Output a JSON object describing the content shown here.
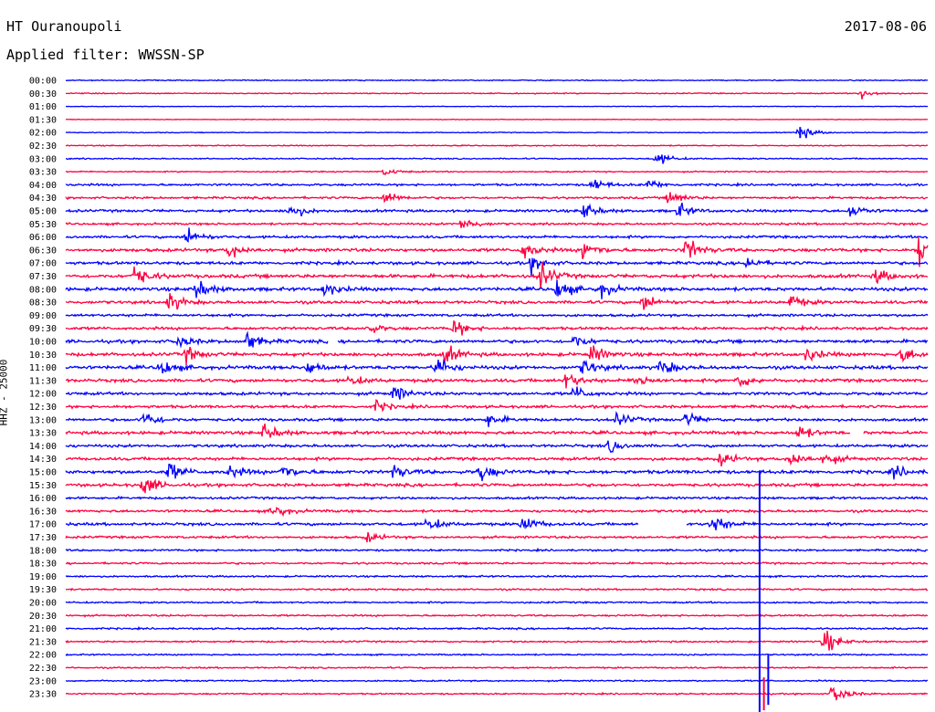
{
  "header": {
    "station": "HT Ouranoupoli",
    "date": "2017-08-06",
    "filter": "Applied filter: WWSSN-SP"
  },
  "chart_data": {
    "type": "line",
    "ylabel": "HHZ - 25000",
    "colors": [
      "#0000ff",
      "#ff0040"
    ],
    "rows": [
      "00:00",
      "00:30",
      "01:00",
      "01:30",
      "02:00",
      "02:30",
      "03:00",
      "03:30",
      "04:00",
      "04:30",
      "05:00",
      "05:30",
      "06:00",
      "06:30",
      "07:00",
      "07:30",
      "08:00",
      "08:30",
      "09:00",
      "09:30",
      "10:00",
      "10:30",
      "11:00",
      "11:30",
      "12:00",
      "12:30",
      "13:00",
      "13:30",
      "14:00",
      "14:30",
      "15:00",
      "15:30",
      "16:00",
      "16:30",
      "17:00",
      "17:30",
      "18:00",
      "18:30",
      "19:00",
      "19:30",
      "20:00",
      "20:30",
      "21:00",
      "21:30",
      "22:00",
      "22:30",
      "23:00",
      "23:30"
    ],
    "row_noise": [
      0.5,
      0.5,
      0.3,
      0.3,
      0.4,
      0.5,
      0.6,
      0.6,
      1.0,
      1.0,
      1.2,
      1.0,
      1.2,
      1.5,
      1.4,
      1.6,
      1.6,
      1.4,
      1.2,
      1.3,
      1.5,
      1.6,
      1.6,
      1.5,
      1.4,
      1.3,
      1.3,
      1.5,
      1.3,
      1.4,
      1.6,
      1.4,
      1.1,
      1.2,
      1.3,
      1.1,
      0.9,
      0.9,
      0.8,
      0.8,
      0.8,
      0.8,
      0.8,
      0.8,
      0.7,
      0.7,
      0.7,
      0.7
    ],
    "events": [
      {
        "row": 1,
        "t": 0.923,
        "a": 6
      },
      {
        "row": 4,
        "t": 0.85,
        "a": 9
      },
      {
        "row": 6,
        "t": 0.685,
        "a": 8
      },
      {
        "row": 7,
        "t": 0.37,
        "a": 4
      },
      {
        "row": 8,
        "t": 0.61,
        "a": 8
      },
      {
        "row": 8,
        "t": 0.675,
        "a": 6
      },
      {
        "row": 9,
        "t": 0.37,
        "a": 8
      },
      {
        "row": 9,
        "t": 0.7,
        "a": 9
      },
      {
        "row": 10,
        "t": 0.26,
        "a": 9
      },
      {
        "row": 10,
        "t": 0.6,
        "a": 10
      },
      {
        "row": 10,
        "t": 0.71,
        "a": 8
      },
      {
        "row": 10,
        "t": 0.91,
        "a": 8
      },
      {
        "row": 11,
        "t": 0.46,
        "a": 8
      },
      {
        "row": 12,
        "t": 0.14,
        "a": 10
      },
      {
        "row": 13,
        "t": 0.19,
        "a": 9
      },
      {
        "row": 13,
        "t": 0.53,
        "a": 10
      },
      {
        "row": 13,
        "t": 0.6,
        "a": 12
      },
      {
        "row": 13,
        "t": 0.72,
        "a": 14
      },
      {
        "row": 13,
        "t": 0.99,
        "a": 22
      },
      {
        "row": 14,
        "t": 0.54,
        "a": 8
      },
      {
        "row": 14,
        "t": 0.79,
        "a": 7
      },
      {
        "row": 15,
        "t": 0.08,
        "a": 12
      },
      {
        "row": 15,
        "t": 0.55,
        "a": 14
      },
      {
        "row": 15,
        "t": 0.94,
        "a": 8
      },
      {
        "row": 16,
        "t": 0.15,
        "a": 12
      },
      {
        "row": 16,
        "t": 0.3,
        "a": 8
      },
      {
        "row": 16,
        "t": 0.57,
        "a": 12
      },
      {
        "row": 16,
        "t": 0.62,
        "a": 8
      },
      {
        "row": 17,
        "t": 0.12,
        "a": 10
      },
      {
        "row": 17,
        "t": 0.67,
        "a": 9
      },
      {
        "row": 17,
        "t": 0.84,
        "a": 8
      },
      {
        "row": 19,
        "t": 0.35,
        "a": 6
      },
      {
        "row": 19,
        "t": 0.45,
        "a": 10
      },
      {
        "row": 20,
        "t": 0.13,
        "a": 7
      },
      {
        "row": 20,
        "t": 0.21,
        "a": 10
      },
      {
        "row": 20,
        "t": 0.59,
        "a": 7
      },
      {
        "row": 21,
        "t": 0.14,
        "a": 8
      },
      {
        "row": 21,
        "t": 0.44,
        "a": 10
      },
      {
        "row": 21,
        "t": 0.61,
        "a": 10
      },
      {
        "row": 21,
        "t": 0.86,
        "a": 8
      },
      {
        "row": 21,
        "t": 0.97,
        "a": 9
      },
      {
        "row": 22,
        "t": 0.11,
        "a": 10
      },
      {
        "row": 22,
        "t": 0.28,
        "a": 8
      },
      {
        "row": 22,
        "t": 0.43,
        "a": 12
      },
      {
        "row": 22,
        "t": 0.6,
        "a": 9
      },
      {
        "row": 22,
        "t": 0.69,
        "a": 10
      },
      {
        "row": 23,
        "t": 0.33,
        "a": 6
      },
      {
        "row": 23,
        "t": 0.58,
        "a": 9
      },
      {
        "row": 23,
        "t": 0.66,
        "a": 8
      },
      {
        "row": 23,
        "t": 0.78,
        "a": 8
      },
      {
        "row": 24,
        "t": 0.38,
        "a": 9
      },
      {
        "row": 24,
        "t": 0.59,
        "a": 8
      },
      {
        "row": 25,
        "t": 0.36,
        "a": 6
      },
      {
        "row": 26,
        "t": 0.09,
        "a": 10
      },
      {
        "row": 26,
        "t": 0.49,
        "a": 7
      },
      {
        "row": 26,
        "t": 0.64,
        "a": 7
      },
      {
        "row": 26,
        "t": 0.72,
        "a": 8
      },
      {
        "row": 27,
        "t": 0.23,
        "a": 10
      },
      {
        "row": 27,
        "t": 0.85,
        "a": 8
      },
      {
        "row": 28,
        "t": 0.63,
        "a": 7
      },
      {
        "row": 29,
        "t": 0.76,
        "a": 7
      },
      {
        "row": 29,
        "t": 0.84,
        "a": 10
      },
      {
        "row": 29,
        "t": 0.88,
        "a": 7
      },
      {
        "row": 30,
        "t": 0.12,
        "a": 10
      },
      {
        "row": 30,
        "t": 0.19,
        "a": 7
      },
      {
        "row": 30,
        "t": 0.25,
        "a": 9
      },
      {
        "row": 30,
        "t": 0.38,
        "a": 8
      },
      {
        "row": 30,
        "t": 0.48,
        "a": 10
      },
      {
        "row": 30,
        "t": 0.96,
        "a": 7
      },
      {
        "row": 31,
        "t": 0.09,
        "a": 12
      },
      {
        "row": 33,
        "t": 0.24,
        "a": 8
      },
      {
        "row": 34,
        "t": 0.42,
        "a": 8
      },
      {
        "row": 34,
        "t": 0.53,
        "a": 10
      },
      {
        "row": 34,
        "t": 0.75,
        "a": 12
      },
      {
        "row": 35,
        "t": 0.35,
        "a": 5
      },
      {
        "row": 43,
        "t": 0.88,
        "a": 14
      },
      {
        "row": 47,
        "t": 0.89,
        "a": 12
      }
    ],
    "gaps": [
      {
        "row": 20,
        "from": 0.305,
        "to": 0.315
      },
      {
        "row": 27,
        "from": 0.91,
        "to": 0.925
      },
      {
        "row": 34,
        "from": 0.665,
        "to": 0.72
      }
    ],
    "spikes": [
      {
        "row": 4,
        "t": 0.852,
        "up": 6,
        "down": 6
      },
      {
        "row": 30,
        "t": 0.805,
        "up": 0,
        "down": 270
      },
      {
        "row": 44,
        "t": 0.815,
        "up": 0,
        "down": 55
      },
      {
        "row": 47,
        "t": 0.81,
        "up": 18,
        "down": 18
      }
    ]
  }
}
